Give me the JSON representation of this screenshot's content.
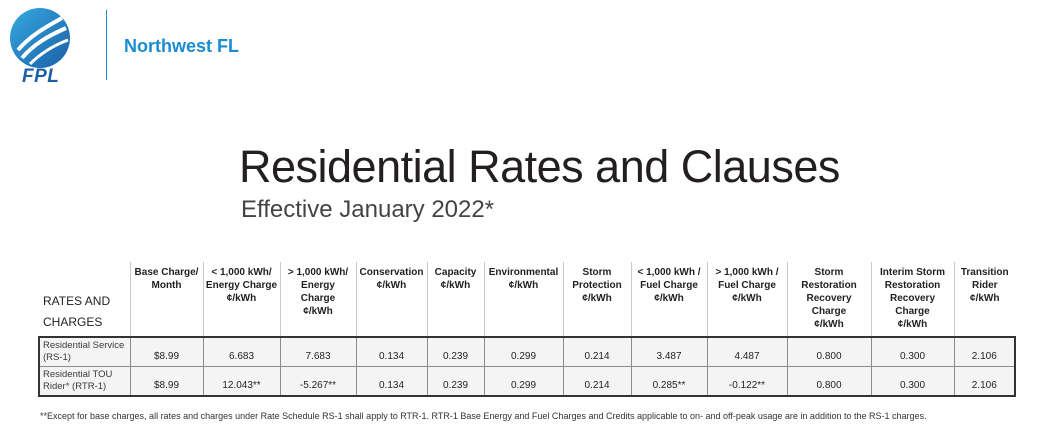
{
  "header": {
    "logo_text": "FPL",
    "region": "Northwest FL"
  },
  "title": "Residential Rates and Clauses",
  "subtitle": "Effective January 2022*",
  "table": {
    "corner_label": [
      "RATES AND",
      "CHARGES"
    ],
    "columns": [
      [
        "Base Charge/",
        "Month"
      ],
      [
        "< 1,000 kWh/",
        "Energy Charge",
        "¢/kWh"
      ],
      [
        "> 1,000 kWh/",
        "Energy Charge",
        "¢/kWh"
      ],
      [
        "Conservation",
        "¢/kWh"
      ],
      [
        "Capacity",
        "¢/kWh"
      ],
      [
        "Environmental",
        "¢/kWh"
      ],
      [
        "Storm",
        "Protection",
        "¢/kWh"
      ],
      [
        "< 1,000 kWh /",
        "Fuel Charge",
        "¢/kWh"
      ],
      [
        ">  1,000 kWh /",
        "Fuel Charge",
        "¢/kWh"
      ],
      [
        "Storm",
        "Restoration",
        "Recovery Charge",
        "¢/kWh"
      ],
      [
        "Interim Storm",
        "Restoration",
        "Recovery Charge",
        "¢/kWh"
      ],
      [
        "Transition",
        "Rider",
        "¢/kWh"
      ]
    ],
    "rows": [
      {
        "label": [
          "Residential Service",
          "(RS-1)"
        ],
        "values": [
          "$8.99",
          "6.683",
          "7.683",
          "0.134",
          "0.239",
          "0.299",
          "0.214",
          "3.487",
          "4.487",
          "0.800",
          "0.300",
          "2.106"
        ]
      },
      {
        "label": [
          "Residential TOU",
          "Rider* (RTR-1)"
        ],
        "values": [
          "$8.99",
          "12.043**",
          "-5.267**",
          "0.134",
          "0.239",
          "0.299",
          "0.214",
          "0.285**",
          "-0.122**",
          "0.800",
          "0.300",
          "2.106"
        ]
      }
    ]
  },
  "footnote": "**Except for base charges, all rates and charges under Rate Schedule RS-1 shall apply to RTR-1. RTR-1 Base Energy and Fuel Charges and Credits applicable to on- and off-peak usage are in addition to the RS-1 charges.",
  "colors": {
    "brand_blue": "#1a8ccf",
    "logo_blue": "#1f5fa8",
    "text": "#231f20"
  }
}
